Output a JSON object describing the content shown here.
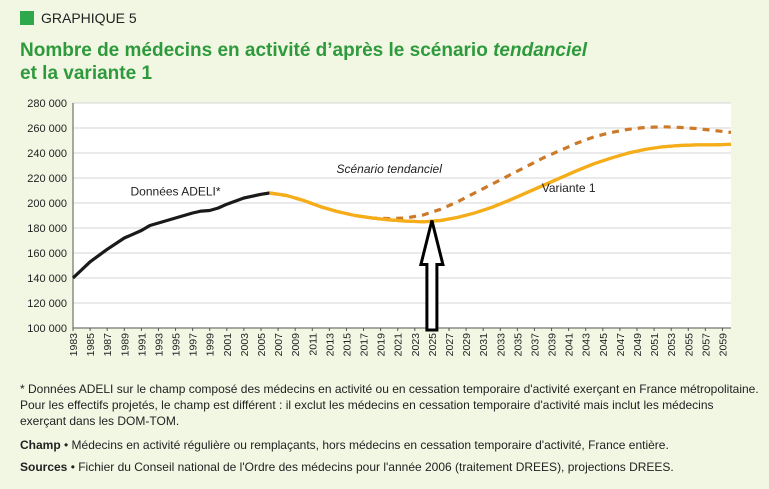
{
  "header": {
    "tag": "GRAPHIQUE 5",
    "title_line1_a": "Nombre de médecins en activité d’après le scénario ",
    "title_line1_em": "tendanciel",
    "title_line2": "et la variante 1"
  },
  "notes": {
    "star": "* Données ADELI sur le champ composé des médecins en activité ou en cessation temporaire d'activité exerçant en France métropolitaine. Pour les effectifs projetés, le champ est différent : il exclut les médecins en cessation temporaire d'activité mais inclut les médecins exerçant dans les DOM-TOM.",
    "champ_label": "Champ",
    "champ_text": " • Médecins en activité régulière ou remplaçants, hors médecins en cessation temporaire d'activité, France entière.",
    "sources_label": "Sources",
    "sources_text": " • Fichier du Conseil national de l'Ordre des médecins pour l'année 2006 (traitement DREES), projections DREES."
  },
  "chart_data": {
    "type": "line",
    "title": "",
    "xlabel": "",
    "ylabel": "",
    "xlim": [
      1983,
      2060
    ],
    "ylim": [
      100000,
      280000
    ],
    "y_ticks": [
      100000,
      120000,
      140000,
      160000,
      180000,
      200000,
      220000,
      240000,
      260000,
      280000
    ],
    "y_tick_labels": [
      "100 000",
      "120 000",
      "140 000",
      "160 000",
      "180 000",
      "200 000",
      "220 000",
      "240 000",
      "260 000",
      "280 000"
    ],
    "x_tick_labels": [
      "1983",
      "1985",
      "1987",
      "1989",
      "1991",
      "1993",
      "1995",
      "1997",
      "1999",
      "2001",
      "2003",
      "2005",
      "2007",
      "2009",
      "2011",
      "2013",
      "2015",
      "2017",
      "2019",
      "2021",
      "2023",
      "2025",
      "2027",
      "2029",
      "2031",
      "2033",
      "2035",
      "2037",
      "2039",
      "2041",
      "2043",
      "2045",
      "2047",
      "2049",
      "2051",
      "2053",
      "2055",
      "2057",
      "2059"
    ],
    "grid": true,
    "series": [
      {
        "name": "Données ADELI*",
        "color": "#1a1a1a",
        "style": "solid",
        "x": [
          1983,
          1985,
          1987,
          1989,
          1990,
          1991,
          1992,
          1993,
          1995,
          1997,
          1998,
          1999,
          2000,
          2001,
          2003,
          2005,
          2006
        ],
        "y": [
          140000,
          153000,
          163000,
          172000,
          175000,
          178000,
          182000,
          184000,
          188000,
          192000,
          193500,
          194000,
          196000,
          199000,
          204000,
          207000,
          208000
        ]
      },
      {
        "name": "Scénario tendanciel",
        "color": "#cc7a2a",
        "style": "dashed",
        "x": [
          2006,
          2008,
          2010,
          2012,
          2014,
          2016,
          2018,
          2020,
          2022,
          2024,
          2026,
          2028,
          2030,
          2032,
          2034,
          2036,
          2038,
          2040,
          2042,
          2044,
          2046,
          2048,
          2050,
          2052,
          2054,
          2056,
          2058,
          2060
        ],
        "y": [
          208000,
          206000,
          202000,
          197000,
          193000,
          190000,
          188000,
          187500,
          188000,
          190500,
          195000,
          201000,
          208000,
          215000,
          222000,
          229000,
          236000,
          242000,
          248000,
          253000,
          256500,
          259000,
          260500,
          261000,
          260500,
          259500,
          258000,
          256500
        ]
      },
      {
        "name": "Variante 1",
        "color": "#f5ad1a",
        "style": "solid",
        "x": [
          2006,
          2008,
          2010,
          2012,
          2014,
          2016,
          2018,
          2020,
          2022,
          2024,
          2026,
          2028,
          2030,
          2032,
          2034,
          2036,
          2038,
          2040,
          2042,
          2044,
          2046,
          2048,
          2050,
          2052,
          2054,
          2056,
          2058,
          2060
        ],
        "y": [
          208000,
          206000,
          202000,
          197000,
          193000,
          190000,
          188000,
          186500,
          185500,
          185000,
          186000,
          188500,
          192000,
          196500,
          202000,
          208000,
          214000,
          220000,
          226000,
          231500,
          236000,
          240000,
          243000,
          245000,
          246000,
          246500,
          246500,
          247000
        ]
      }
    ],
    "annotations": [
      {
        "text": "Données ADELI*",
        "x": 1995,
        "y": 206000
      },
      {
        "text": "Scénario tendanciel",
        "x": 2020,
        "y": 224000
      },
      {
        "text": "Variante 1",
        "x": 2041,
        "y": 209000
      }
    ],
    "arrow": {
      "x": 2025,
      "y_tip": 186000,
      "y_base": 100000
    }
  }
}
